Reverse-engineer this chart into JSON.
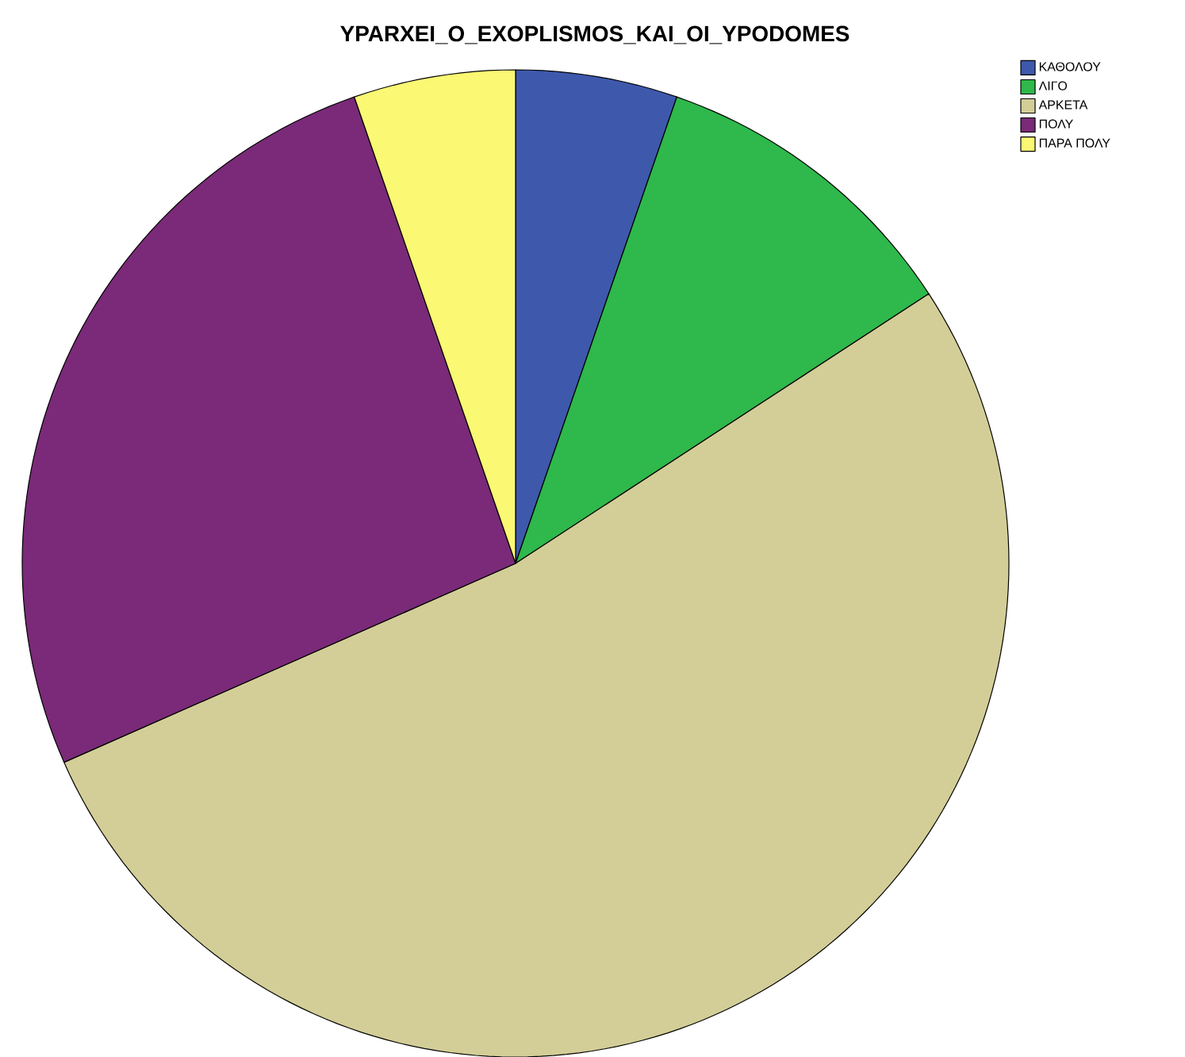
{
  "chart_data": {
    "type": "pie",
    "title": "YPARXEI_O_EXOPLISMOS_KAI_OI_YPODOMES",
    "categories": [
      "ΚΑΘΟΛΟΥ",
      "ΛΙΓΟ",
      "ΑΡΚΕΤΑ",
      "ΠΟΛΥ",
      "ΠΑΡΑ ΠΟΛΥ"
    ],
    "values": [
      5.3,
      10.5,
      52.6,
      26.3,
      5.3
    ],
    "colors": [
      "#3e58ac",
      "#2fb84b",
      "#d3ce97",
      "#7a2a78",
      "#fbf873"
    ],
    "legend": "top right"
  }
}
